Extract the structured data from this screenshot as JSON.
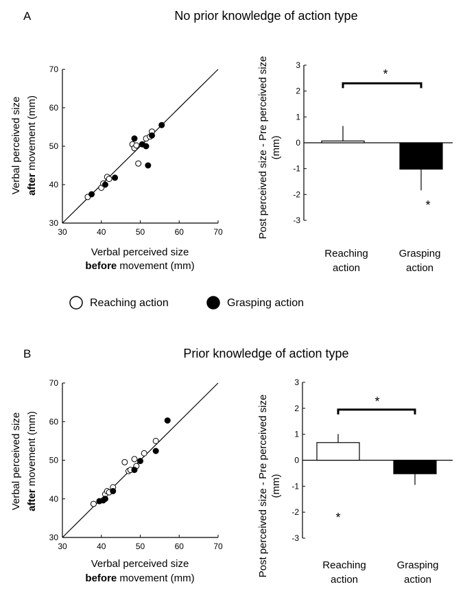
{
  "panels": [
    {
      "label": "A",
      "title": "No prior knowledge of action type",
      "scatter": {
        "ylabel_line1": "Verbal perceived size",
        "ylabel_bold": "after",
        "ylabel_rest": " movement (mm)",
        "xlabel_line1": "Verbal perceived size",
        "xlabel_bold": "before",
        "xlabel_rest": " movement (mm)"
      },
      "bar": {
        "ylabel_line1": "Post perceived size - Pre perceived size",
        "ylabel_line2": "(mm)",
        "significance_star": "*",
        "grasp_star": "*",
        "cat1_line1": "Reaching",
        "cat1_line2": "action",
        "cat2_line1": "Grasping",
        "cat2_line2": "action"
      }
    },
    {
      "label": "B",
      "title": "Prior knowledge of action type",
      "scatter": {
        "ylabel_line1": "Verbal perceived size",
        "ylabel_bold": "after",
        "ylabel_rest": " movement (mm)",
        "xlabel_line1": "Verbal perceived size",
        "xlabel_bold": "before",
        "xlabel_rest": " movement (mm)"
      },
      "bar": {
        "ylabel_line1": "Post perceived size - Pre perceived size",
        "ylabel_line2": "(mm)",
        "significance_star": "*",
        "reach_star": "*",
        "cat1_line1": "Reaching",
        "cat1_line2": "action",
        "cat2_line1": "Grasping",
        "cat2_line2": "action"
      }
    }
  ],
  "legend": {
    "reaching": "Reaching action",
    "grasping": "Grasping action"
  },
  "colors": {
    "reaching": "#ffffff",
    "grasping": "#000000",
    "stroke": "#000000"
  },
  "chart_data": [
    {
      "type": "scatter",
      "title": "No prior knowledge of action type",
      "xlabel": "Verbal perceived size before movement (mm)",
      "ylabel": "Verbal perceived size after movement (mm)",
      "xlim": [
        30,
        70
      ],
      "ylim": [
        30,
        70
      ],
      "xticks": [
        30,
        40,
        50,
        60,
        70
      ],
      "yticks": [
        30,
        40,
        50,
        60,
        70
      ],
      "identity_line": true,
      "series": [
        {
          "name": "Reaching action",
          "points": [
            [
              36.5,
              36.8
            ],
            [
              40,
              39.2
            ],
            [
              40.5,
              40.3
            ],
            [
              41.5,
              42
            ],
            [
              42,
              41.5
            ],
            [
              48,
              50.5
            ],
            [
              48.5,
              49.5
            ],
            [
              49,
              50.2
            ],
            [
              49.5,
              45.5
            ],
            [
              51.5,
              52
            ],
            [
              52.5,
              52.5
            ],
            [
              53,
              53.8
            ]
          ]
        },
        {
          "name": "Grasping action",
          "points": [
            [
              37.5,
              37.5
            ],
            [
              41,
              40
            ],
            [
              43.5,
              41.8
            ],
            [
              48.5,
              52
            ],
            [
              50.5,
              50.5
            ],
            [
              51.5,
              50
            ],
            [
              52,
              45
            ],
            [
              53,
              52.8
            ],
            [
              55.5,
              55.5
            ]
          ]
        }
      ]
    },
    {
      "type": "bar",
      "title": "No prior knowledge of action type",
      "ylabel": "Post perceived size - Pre perceived size (mm)",
      "categories": [
        "Reaching action",
        "Grasping action"
      ],
      "values": [
        0.07,
        -1.02
      ],
      "errors": [
        0.58,
        0.82
      ],
      "ylim": [
        -3,
        3
      ],
      "yticks": [
        -3,
        -2,
        -1,
        0,
        1,
        2,
        3
      ],
      "annotations": [
        "* between groups",
        "* below Grasping action"
      ]
    },
    {
      "type": "scatter",
      "title": "Prior knowledge of action type",
      "xlabel": "Verbal perceived size before movement (mm)",
      "ylabel": "Verbal perceived size after movement (mm)",
      "xlim": [
        30,
        70
      ],
      "ylim": [
        30,
        70
      ],
      "xticks": [
        30,
        40,
        50,
        60,
        70
      ],
      "yticks": [
        30,
        40,
        50,
        60,
        70
      ],
      "identity_line": true,
      "series": [
        {
          "name": "Reaching action",
          "points": [
            [
              38,
              38.7
            ],
            [
              41,
              41.2
            ],
            [
              41.5,
              42
            ],
            [
              42,
              41.7
            ],
            [
              43,
              43
            ],
            [
              46,
              49.5
            ],
            [
              47,
              47.2
            ],
            [
              47.5,
              47.5
            ],
            [
              48.5,
              50.3
            ],
            [
              49,
              48.5
            ],
            [
              51,
              51.8
            ],
            [
              54,
              55
            ]
          ]
        },
        {
          "name": "Grasping action",
          "points": [
            [
              39.5,
              39.4
            ],
            [
              40.5,
              39.6
            ],
            [
              41,
              40
            ],
            [
              43,
              42
            ],
            [
              48.5,
              47.5
            ],
            [
              50,
              49.8
            ],
            [
              54,
              52.4
            ],
            [
              57,
              60.3
            ]
          ]
        }
      ]
    },
    {
      "type": "bar",
      "title": "Prior knowledge of action type",
      "ylabel": "Post perceived size - Pre perceived size (mm)",
      "categories": [
        "Reaching action",
        "Grasping action"
      ],
      "values": [
        0.68,
        -0.52
      ],
      "errors": [
        0.33,
        0.43
      ],
      "ylim": [
        -3,
        3
      ],
      "yticks": [
        -3,
        -2,
        -1,
        0,
        1,
        2,
        3
      ],
      "annotations": [
        "* between groups",
        "* below Reaching action"
      ]
    }
  ]
}
